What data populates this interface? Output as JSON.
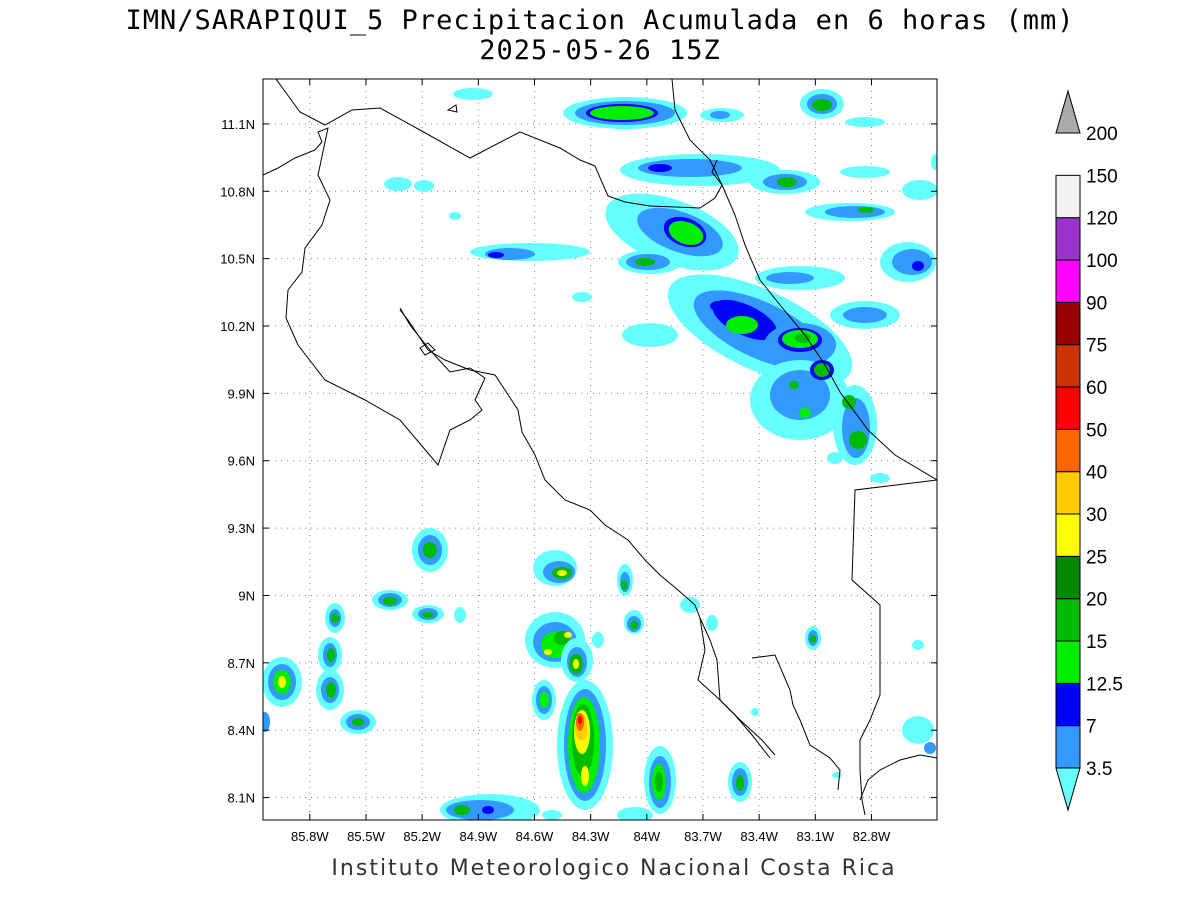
{
  "title": {
    "line1": "IMN/SARAPIQUI_5 Precipitacion Acumulada en 6 horas (mm)",
    "line2": "2025-05-26 15Z"
  },
  "map": {
    "lon_range": [
      -86.05,
      -82.45
    ],
    "lat_range": [
      8.0,
      11.3
    ],
    "lon_ticks": [
      "85.8W",
      "85.5W",
      "85.2W",
      "84.9W",
      "84.6W",
      "84.3W",
      "84W",
      "83.7W",
      "83.4W",
      "83.1W",
      "82.8W"
    ],
    "lat_ticks": [
      "8.1N",
      "8.4N",
      "8.7N",
      "9N",
      "9.3N",
      "9.6N",
      "9.9N",
      "10.2N",
      "10.5N",
      "10.8N",
      "11.1N"
    ],
    "gridlines": "dotted"
  },
  "colorbar": {
    "labels": [
      "3.5",
      "7",
      "12.5",
      "15",
      "20",
      "25",
      "30",
      "40",
      "50",
      "60",
      "75",
      "90",
      "100",
      "120",
      "150",
      "200"
    ],
    "colors": [
      "#66ffff",
      "#3399ff",
      "#0000ff",
      "#00ee00",
      "#00bb00",
      "#008800",
      "#ffff00",
      "#ffcc00",
      "#ff6600",
      "#ff0000",
      "#cc3300",
      "#990000",
      "#ff00ff",
      "#9933cc",
      "#f2f2f2",
      "#aaaaaa"
    ]
  },
  "footer": "Instituto Meteorologico Nacional Costa Rica"
}
